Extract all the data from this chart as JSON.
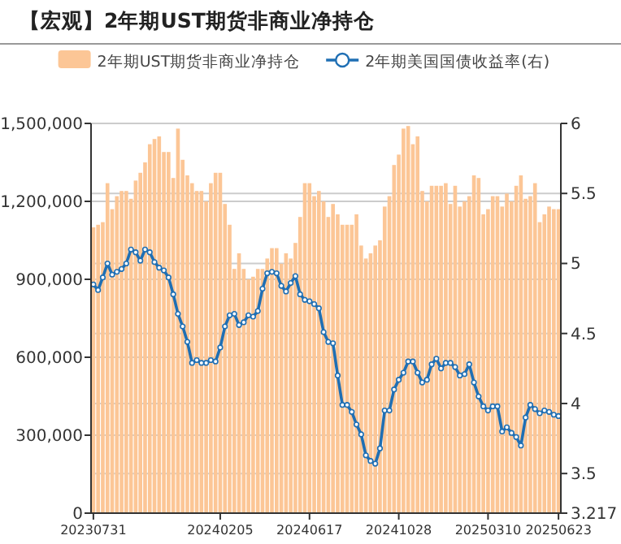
{
  "chart_data": {
    "type": "bar",
    "title": "【宏观】2年期UST期货非商业净持仓",
    "categories": [
      "20230731",
      null,
      null,
      null,
      null,
      null,
      null,
      null,
      null,
      null,
      null,
      null,
      null,
      null,
      null,
      null,
      null,
      null,
      null,
      null,
      null,
      null,
      null,
      null,
      null,
      null,
      null,
      "20240205",
      null,
      null,
      null,
      null,
      null,
      null,
      null,
      null,
      null,
      null,
      null,
      null,
      null,
      null,
      null,
      null,
      null,
      null,
      "20240617",
      null,
      null,
      null,
      null,
      null,
      null,
      null,
      null,
      null,
      null,
      null,
      null,
      null,
      null,
      null,
      null,
      null,
      null,
      "20241028",
      null,
      null,
      null,
      null,
      null,
      null,
      null,
      null,
      null,
      null,
      null,
      null,
      null,
      null,
      null,
      null,
      null,
      null,
      "20250310",
      null,
      null,
      null,
      null,
      null,
      null,
      null,
      null,
      null,
      null,
      null,
      null,
      null,
      null,
      "20250623"
    ],
    "series": [
      {
        "name": "2年期UST期货非商业净持仓",
        "color": "#fcc696",
        "values": [
          1100000,
          1110000,
          1120000,
          1270000,
          1170000,
          1220000,
          1240000,
          1240000,
          1210000,
          1280000,
          1310000,
          1350000,
          1420000,
          1440000,
          1450000,
          1390000,
          1390000,
          1290000,
          1480000,
          1360000,
          1300000,
          1270000,
          1240000,
          1240000,
          1200000,
          1270000,
          1310000,
          1310000,
          1190000,
          1110000,
          940000,
          1000000,
          940000,
          900000,
          910000,
          940000,
          940000,
          980000,
          1020000,
          1020000,
          960000,
          1000000,
          980000,
          1040000,
          1140000,
          1270000,
          1270000,
          1220000,
          1240000,
          1200000,
          1140000,
          1190000,
          1150000,
          1110000,
          1110000,
          1110000,
          1150000,
          1030000,
          980000,
          1000000,
          1030000,
          1050000,
          1180000,
          1220000,
          1340000,
          1380000,
          1480000,
          1490000,
          1420000,
          1450000,
          1240000,
          1200000,
          1260000,
          1260000,
          1260000,
          1270000,
          1190000,
          1260000,
          1180000,
          1200000,
          1220000,
          1300000,
          1290000,
          1150000,
          1170000,
          1220000,
          1220000,
          1180000,
          1230000,
          1200000,
          1260000,
          1300000,
          1210000,
          1220000,
          1270000,
          1120000,
          1150000,
          1180000,
          1170000,
          1170000
        ]
      },
      {
        "name": "2年期美国国债收益率(右)",
        "type": "line",
        "axis": "y2",
        "color": "#1f6fb4",
        "values": [
          4.85,
          4.81,
          4.9,
          5.0,
          4.92,
          4.94,
          4.96,
          5.0,
          5.1,
          5.08,
          5.02,
          5.1,
          5.08,
          5.01,
          4.97,
          4.95,
          4.9,
          4.78,
          4.64,
          4.55,
          4.44,
          4.29,
          4.31,
          4.29,
          4.29,
          4.31,
          4.3,
          4.4,
          4.55,
          4.63,
          4.64,
          4.56,
          4.58,
          4.63,
          4.62,
          4.66,
          4.82,
          4.93,
          4.94,
          4.93,
          4.84,
          4.8,
          4.86,
          4.91,
          4.78,
          4.74,
          4.73,
          4.71,
          4.68,
          4.51,
          4.44,
          4.43,
          4.2,
          3.99,
          3.99,
          3.94,
          3.85,
          3.78,
          3.63,
          3.59,
          3.57,
          3.68,
          3.95,
          3.95,
          4.1,
          4.17,
          4.22,
          4.3,
          4.3,
          4.22,
          4.15,
          4.17,
          4.28,
          4.32,
          4.25,
          4.29,
          4.29,
          4.26,
          4.2,
          4.21,
          4.28,
          4.15,
          4.05,
          3.98,
          3.95,
          3.98,
          3.98,
          3.8,
          3.83,
          3.79,
          3.76,
          3.7,
          3.9,
          3.99,
          3.96,
          3.93,
          3.95,
          3.94,
          3.92,
          3.91
        ]
      }
    ],
    "ylim": [
      0,
      1500000
    ],
    "yticks": [
      0,
      {
        "value": 300000,
        "label": "300,000"
      },
      {
        "value": 600000,
        "label": "600,000"
      },
      {
        "value": 900000,
        "label": "900,000"
      },
      {
        "value": 1200000,
        "label": "1,200,000"
      },
      {
        "value": 1500000,
        "label": "1,500,000"
      }
    ],
    "y2lim": [
      3.217,
      6
    ],
    "y2ticks": [
      3.217,
      3.5,
      4,
      4.5,
      5,
      5.5,
      6
    ],
    "grid": "y",
    "legend": "top",
    "marker": "circle"
  }
}
